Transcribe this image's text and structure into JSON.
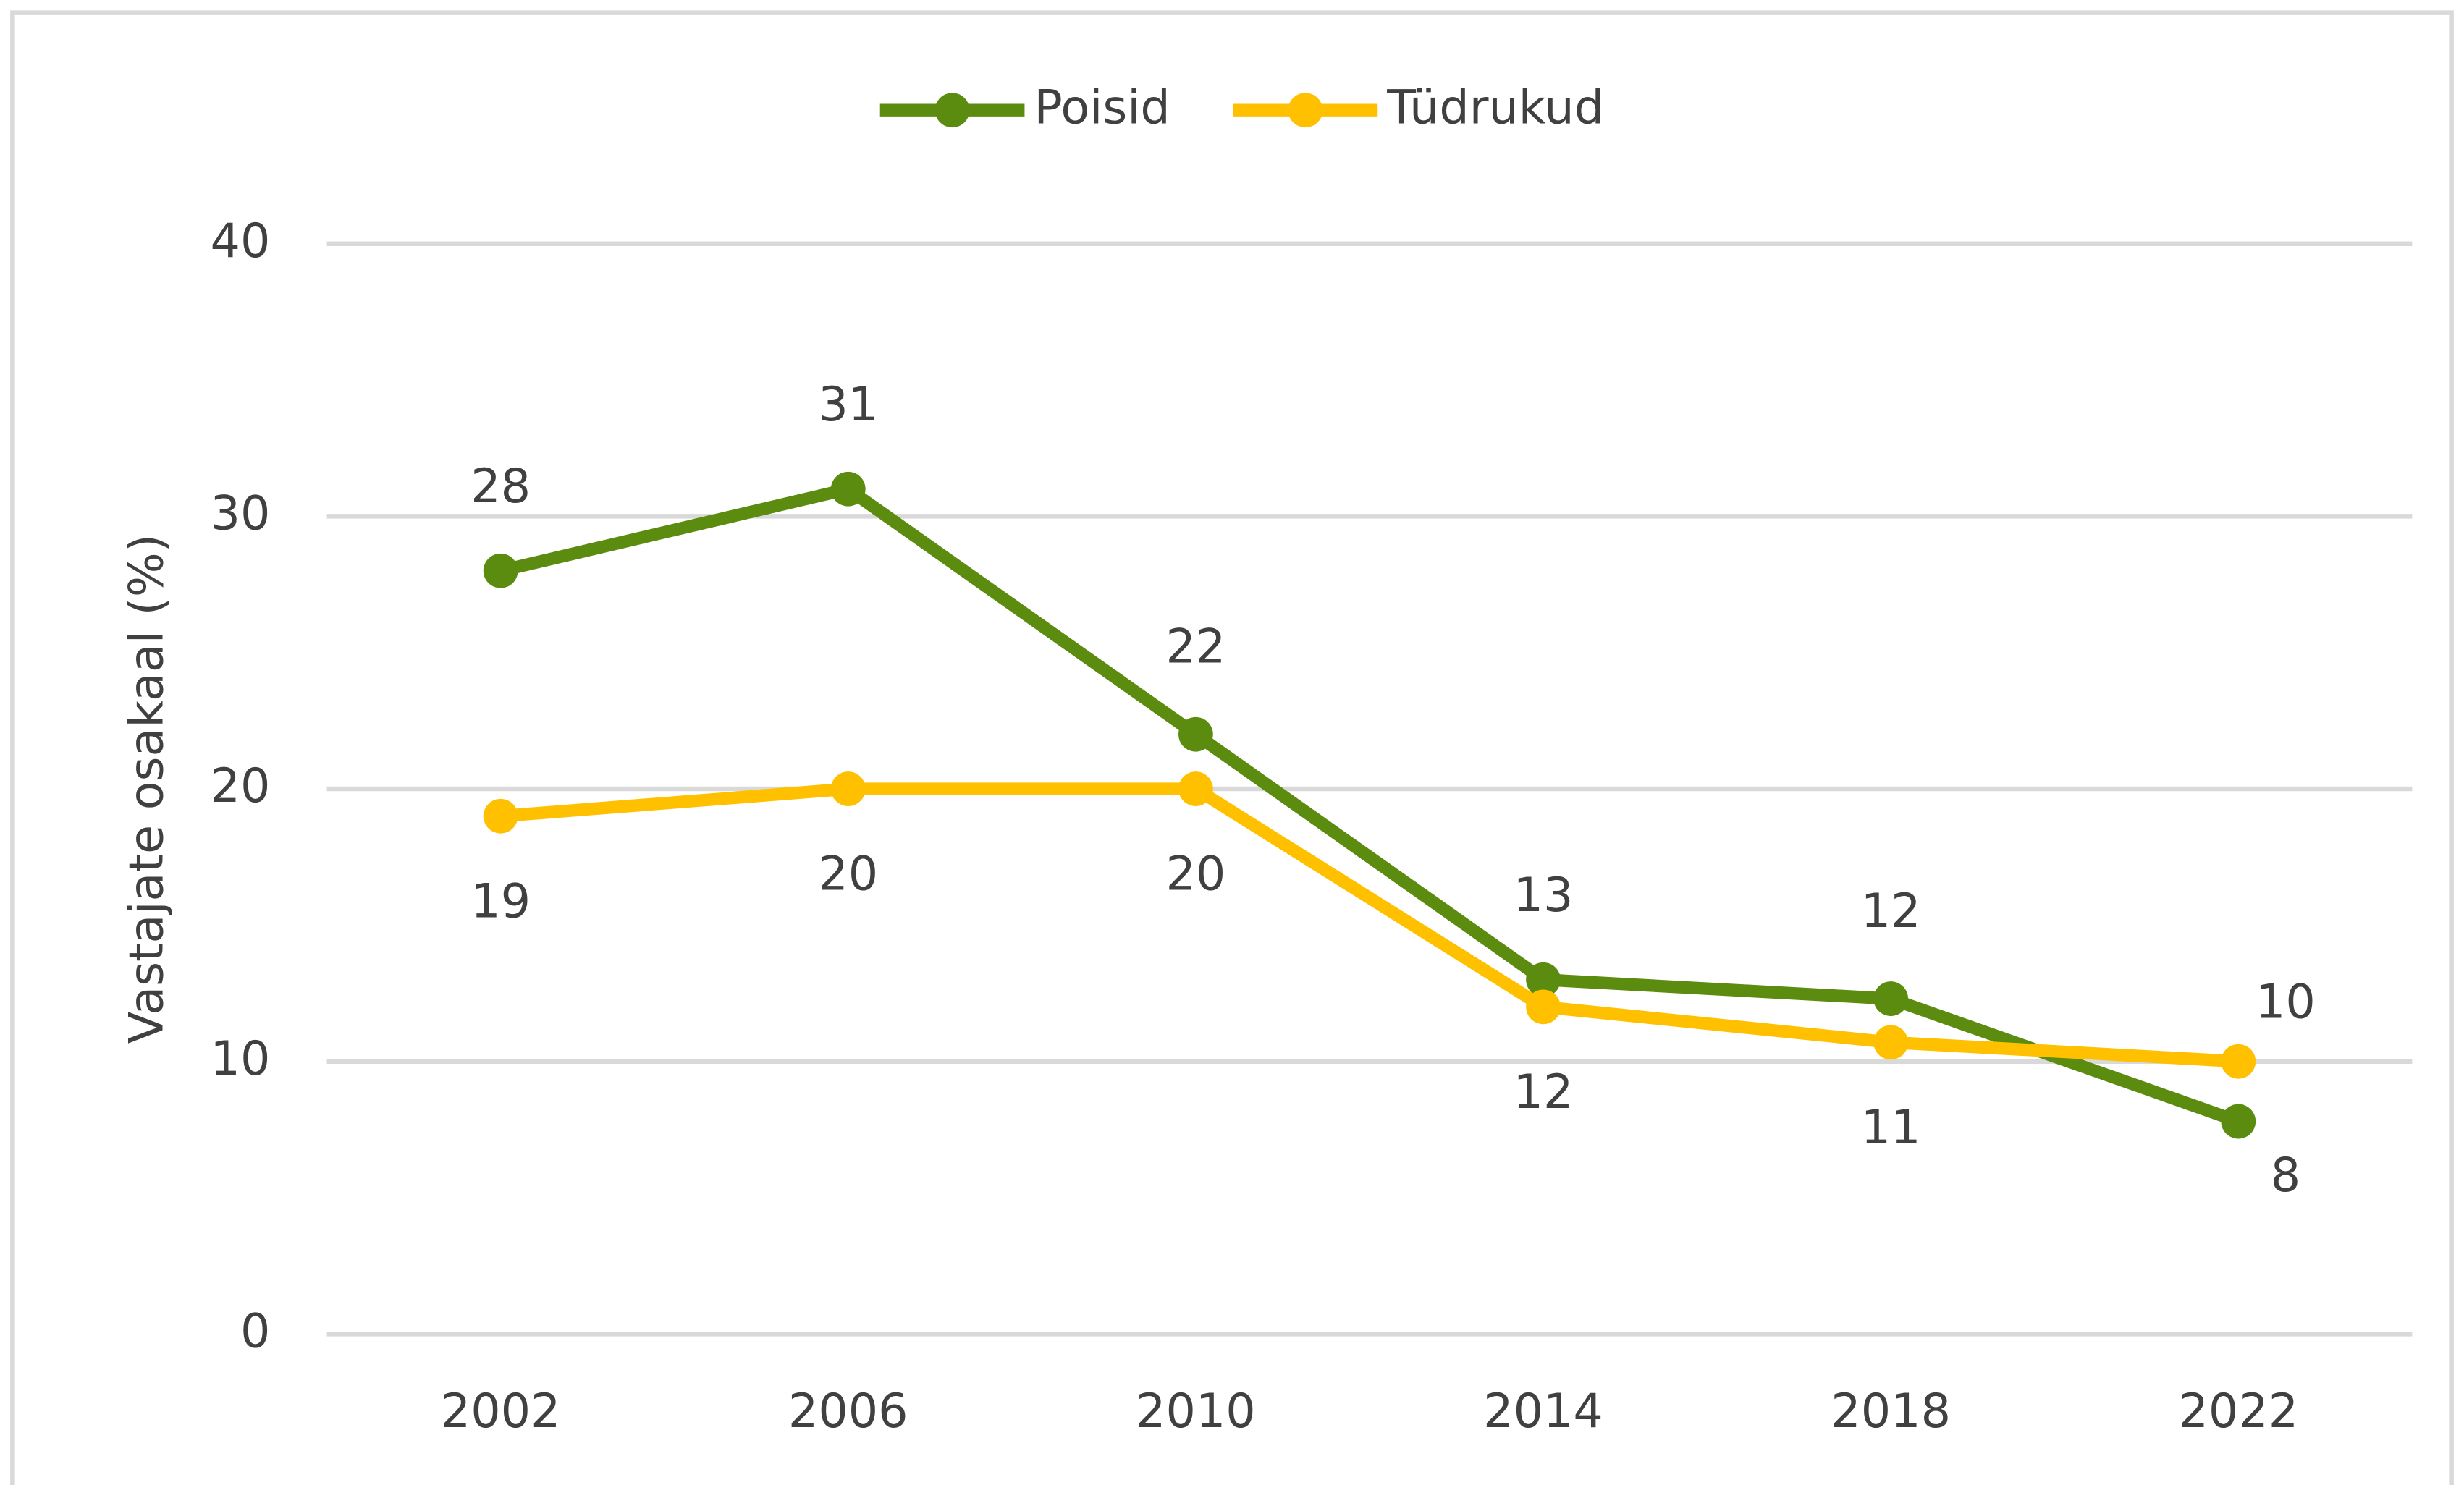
{
  "chart_data": {
    "type": "line",
    "y_label": "Vastajate osakaal (%)",
    "categories": [
      "2002",
      "2006",
      "2010",
      "2014",
      "2018",
      "2022"
    ],
    "series": [
      {
        "name": "Poisid",
        "color": "#5b8c0f",
        "values": [
          28,
          31,
          22,
          13,
          12.3,
          7.8
        ],
        "value_labels": [
          "28",
          "31",
          "22",
          "13",
          "12",
          "8"
        ]
      },
      {
        "name": "Tüdrukud",
        "color": "#ffc000",
        "values": [
          19,
          20,
          20,
          12,
          10.7,
          10
        ],
        "value_labels": [
          "19",
          "20",
          "20",
          "12",
          "11",
          "10"
        ]
      }
    ],
    "ylim": [
      0,
      40
    ],
    "yticks": [
      0,
      10,
      20,
      30,
      40
    ],
    "grid": true,
    "legend": "top"
  }
}
